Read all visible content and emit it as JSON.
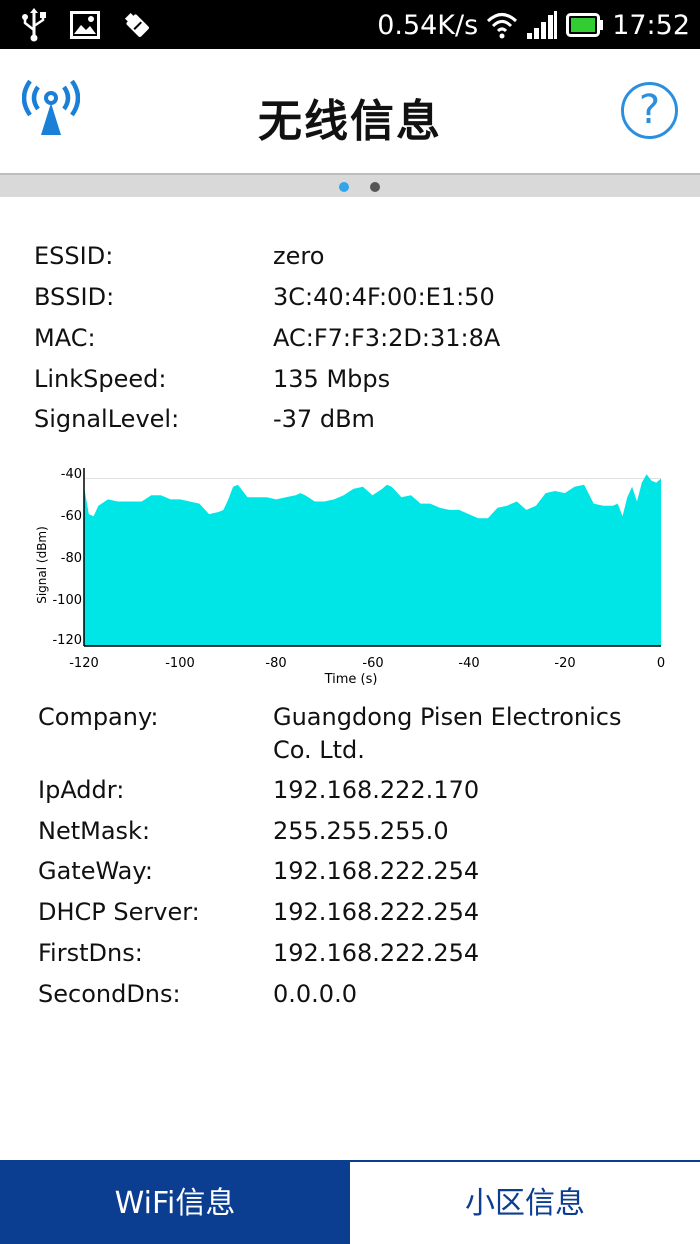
{
  "status_bar": {
    "net_speed": "0.54K/s",
    "time": "17:52",
    "icons": [
      "usb-icon",
      "image-notification-icon",
      "debug-icon",
      "wifi-icon",
      "cell-signal-icon",
      "battery-icon"
    ],
    "battery_color": "#33cc33"
  },
  "header": {
    "title": "无线信息",
    "logo_icon": "wifi-tower-icon",
    "help_icon": "help-icon",
    "help_symbol": "?",
    "accent_color": "#2b8fe0"
  },
  "pager": {
    "page_count": 2,
    "active_page": 1
  },
  "wifi_info": [
    {
      "label": "ESSID:",
      "value": "zero"
    },
    {
      "label": "BSSID:",
      "value": "3C:40:4F:00:E1:50"
    },
    {
      "label": "MAC:",
      "value": "AC:F7:F3:2D:31:8A"
    },
    {
      "label": "LinkSpeed:",
      "value": "135 Mbps"
    },
    {
      "label": "SignalLevel:",
      "value": "-37 dBm"
    }
  ],
  "chart_data": {
    "type": "area",
    "xlabel": "Time (s)",
    "ylabel": "Signal (dBm)",
    "xlim": [
      -120,
      0
    ],
    "ylim": [
      -120,
      -35
    ],
    "x_ticks": [
      "-120",
      "-100",
      "-80",
      "-60",
      "-40",
      "-20",
      "0"
    ],
    "y_ticks": [
      "-40",
      "-60",
      "-80",
      "-100",
      "-120"
    ],
    "grid": true,
    "fill_color": "#00e5e5",
    "series": [
      {
        "x": [
          -120,
          -119,
          -118,
          -117,
          -115,
          -113,
          -110,
          -108,
          -106,
          -104,
          -102,
          -100,
          -98,
          -96,
          -94,
          -92,
          -91,
          -90,
          -89,
          -88,
          -86,
          -84,
          -82,
          -80,
          -78,
          -76,
          -75,
          -74,
          -72,
          -70,
          -68,
          -66,
          -64,
          -62,
          -60,
          -58,
          -57,
          -56,
          -54,
          -52,
          -50,
          -48,
          -46,
          -44,
          -42,
          -40,
          -38,
          -36,
          -34,
          -32,
          -30,
          -28,
          -26,
          -24,
          -22,
          -20,
          -18,
          -16,
          -14,
          -12,
          -10,
          -9,
          -8,
          -7,
          -6,
          -5,
          -4,
          -3,
          -2,
          -1,
          0
        ],
        "y": [
          -44,
          -57,
          -58,
          -53,
          -50,
          -51,
          -51,
          -51,
          -48,
          -48,
          -50,
          -50,
          -51,
          -52,
          -57,
          -56,
          -55,
          -50,
          -44,
          -43,
          -49,
          -49,
          -49,
          -50,
          -49,
          -48,
          -47,
          -48,
          -51,
          -51,
          -50,
          -48,
          -45,
          -44,
          -48,
          -45,
          -43,
          -44,
          -49,
          -48,
          -52,
          -52,
          -54,
          -55,
          -55,
          -57,
          -59,
          -59,
          -54,
          -53,
          -51,
          -55,
          -53,
          -47,
          -46,
          -47,
          -44,
          -43,
          -52,
          -53,
          -53,
          -52,
          -58,
          -49,
          -44,
          -51,
          -42,
          -38,
          -41,
          -42,
          -40
        ]
      }
    ]
  },
  "network_info": [
    {
      "label": "Company:",
      "value": "Guangdong Pisen Electronics",
      "value_line2": "Co. Ltd."
    },
    {
      "label": "IpAddr:",
      "value": "192.168.222.170"
    },
    {
      "label": "NetMask:",
      "value": "255.255.255.0"
    },
    {
      "label": "GateWay:",
      "value": "192.168.222.254"
    },
    {
      "label": "DHCP Server:",
      "value": "192.168.222.254"
    },
    {
      "label": "FirstDns:",
      "value": "192.168.222.254"
    },
    {
      "label": "SecondDns:",
      "value": "0.0.0.0"
    }
  ],
  "bottom_nav": {
    "tabs": [
      {
        "label": "WiFi信息",
        "active": true
      },
      {
        "label": "小区信息",
        "active": false
      }
    ],
    "active_color": "#0b3d91"
  }
}
